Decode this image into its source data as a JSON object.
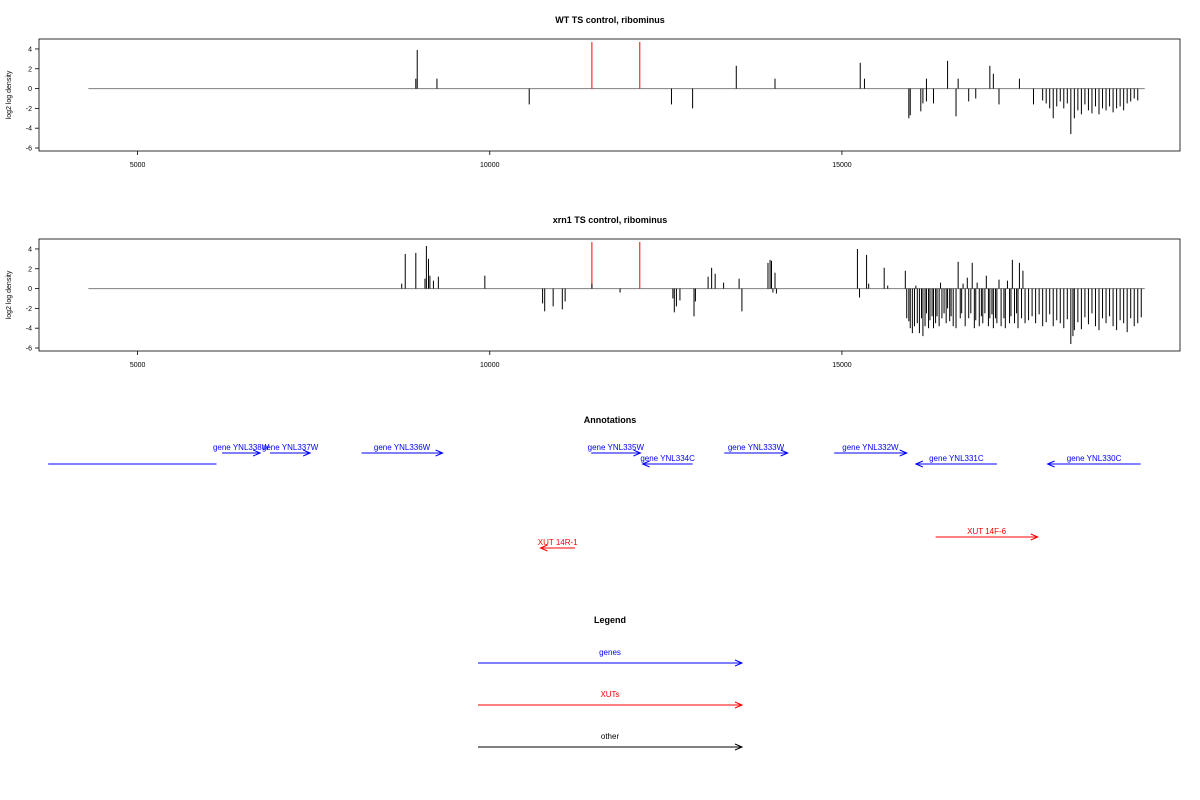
{
  "colors": {
    "gene": "#0000ff",
    "xut": "#ff0000",
    "other": "#000000",
    "marker": "#ff0000",
    "bar": "#000000",
    "baseline": "#7f7f7f"
  },
  "chart_data": [
    {
      "type": "bar",
      "title": "WT TS control, ribominus",
      "ylabel": "log2 log density",
      "xlim": [
        3600,
        19800
      ],
      "ylim": [
        -6,
        4.5
      ],
      "x_ticks": [
        5000,
        10000,
        15000
      ],
      "y_ticks": [
        -6,
        -4,
        -2,
        0,
        2,
        4
      ],
      "baseline_range": [
        4300,
        19300
      ],
      "markers_x": [
        11450,
        12130
      ],
      "bars": [
        [
          8950,
          1
        ],
        [
          8970,
          3.9
        ],
        [
          9250,
          1
        ],
        [
          10560,
          -1.6
        ],
        [
          12580,
          -1.6
        ],
        [
          12880,
          -2
        ],
        [
          13500,
          2.3
        ],
        [
          14050,
          1
        ],
        [
          15260,
          2.6
        ],
        [
          15320,
          1
        ],
        [
          15950,
          -3
        ],
        [
          15970,
          -2.7
        ],
        [
          16120,
          -2.3
        ],
        [
          16150,
          -1.5
        ],
        [
          16200,
          -1.3
        ],
        [
          16200,
          1
        ],
        [
          16300,
          -1.5
        ],
        [
          16500,
          2.8
        ],
        [
          16620,
          -2.8
        ],
        [
          16650,
          1
        ],
        [
          16800,
          -1.3
        ],
        [
          16900,
          -1
        ],
        [
          17100,
          2.3
        ],
        [
          17150,
          1.5
        ],
        [
          17230,
          -1.6
        ],
        [
          17520,
          1
        ],
        [
          17720,
          -1.6
        ],
        [
          17850,
          -1.2
        ],
        [
          17900,
          -1.5
        ],
        [
          17950,
          -2
        ],
        [
          18000,
          -3
        ],
        [
          18050,
          -1.8
        ],
        [
          18100,
          -1.3
        ],
        [
          18150,
          -2
        ],
        [
          18200,
          -1.5
        ],
        [
          18250,
          -4.6
        ],
        [
          18300,
          -3
        ],
        [
          18350,
          -2.2
        ],
        [
          18400,
          -2.6
        ],
        [
          18450,
          -1.6
        ],
        [
          18500,
          -2.2
        ],
        [
          18550,
          -2.5
        ],
        [
          18600,
          -1.8
        ],
        [
          18650,
          -2.6
        ],
        [
          18700,
          -2
        ],
        [
          18750,
          -2.2
        ],
        [
          18800,
          -1.8
        ],
        [
          18850,
          -2.4
        ],
        [
          18900,
          -2
        ],
        [
          18950,
          -1.8
        ],
        [
          19000,
          -2.2
        ],
        [
          19050,
          -1.5
        ],
        [
          19100,
          -1.3
        ],
        [
          19150,
          -1
        ],
        [
          19200,
          -1.2
        ]
      ]
    },
    {
      "type": "bar",
      "title": "xrn1 TS control, ribominus",
      "ylabel": "log2 log density",
      "xlim": [
        3600,
        19800
      ],
      "ylim": [
        -6,
        4.5
      ],
      "x_ticks": [
        5000,
        10000,
        15000
      ],
      "y_ticks": [
        -6,
        -4,
        -2,
        0,
        2,
        4
      ],
      "baseline_range": [
        4300,
        19300
      ],
      "markers_x": [
        11450,
        12130
      ],
      "bars": [
        [
          8750,
          0.5
        ],
        [
          8800,
          3.5
        ],
        [
          8950,
          3.6
        ],
        [
          9080,
          1
        ],
        [
          9100,
          4.3
        ],
        [
          9130,
          3
        ],
        [
          9150,
          1.3
        ],
        [
          9200,
          0.8
        ],
        [
          9270,
          1.2
        ],
        [
          9930,
          1.3
        ],
        [
          10750,
          -1.5
        ],
        [
          10780,
          -2.3
        ],
        [
          10900,
          -1.8
        ],
        [
          11030,
          -2.1
        ],
        [
          11070,
          -1.3
        ],
        [
          11450,
          0.5
        ],
        [
          11850,
          -0.4
        ],
        [
          12600,
          -1
        ],
        [
          12620,
          -2.4
        ],
        [
          12650,
          -1.8
        ],
        [
          12700,
          -1.2
        ],
        [
          12900,
          -2.8
        ],
        [
          12920,
          -1.3
        ],
        [
          13100,
          1.2
        ],
        [
          13150,
          2.1
        ],
        [
          13200,
          1.5
        ],
        [
          13320,
          0.6
        ],
        [
          13540,
          1
        ],
        [
          13580,
          -2.3
        ],
        [
          13950,
          2.6
        ],
        [
          13980,
          2.9
        ],
        [
          14000,
          2.8
        ],
        [
          14020,
          -0.4
        ],
        [
          14050,
          1.6
        ],
        [
          14070,
          -0.5
        ],
        [
          15220,
          4
        ],
        [
          15250,
          -0.9
        ],
        [
          15350,
          3.4
        ],
        [
          15380,
          0.5
        ],
        [
          15600,
          2.1
        ],
        [
          15650,
          0.3
        ],
        [
          15900,
          1.8
        ],
        [
          15920,
          -3
        ],
        [
          15950,
          -3.3
        ],
        [
          15970,
          -4
        ],
        [
          16000,
          -4.5
        ],
        [
          16030,
          -3.8
        ],
        [
          16050,
          0.3
        ],
        [
          16070,
          -3.5
        ],
        [
          16100,
          -4.5
        ],
        [
          16130,
          -3
        ],
        [
          16150,
          -4.8
        ],
        [
          16180,
          -3.8
        ],
        [
          16200,
          -2.5
        ],
        [
          16230,
          -4
        ],
        [
          16250,
          -3.2
        ],
        [
          16280,
          -2.8
        ],
        [
          16300,
          -4
        ],
        [
          16330,
          -3.5
        ],
        [
          16350,
          -2.8
        ],
        [
          16380,
          -3.8
        ],
        [
          16400,
          0.6
        ],
        [
          16420,
          -3
        ],
        [
          16450,
          -2.5
        ],
        [
          16480,
          -3.5
        ],
        [
          16500,
          -2
        ],
        [
          16530,
          -3.3
        ],
        [
          16550,
          -2.8
        ],
        [
          16580,
          -3.8
        ],
        [
          16620,
          -4
        ],
        [
          16650,
          2.7
        ],
        [
          16680,
          -3
        ],
        [
          16700,
          -2.5
        ],
        [
          16720,
          0.5
        ],
        [
          16750,
          -3.8
        ],
        [
          16780,
          1.1
        ],
        [
          16800,
          -3
        ],
        [
          16830,
          -2.5
        ],
        [
          16850,
          2.6
        ],
        [
          16880,
          -4
        ],
        [
          16900,
          -3.2
        ],
        [
          16920,
          0.6
        ],
        [
          16950,
          -3.8
        ],
        [
          16980,
          -2.8
        ],
        [
          17000,
          -3.5
        ],
        [
          17030,
          -2.5
        ],
        [
          17050,
          1.3
        ],
        [
          17080,
          -3.8
        ],
        [
          17100,
          -3
        ],
        [
          17130,
          -2.6
        ],
        [
          17150,
          -4
        ],
        [
          17180,
          -3
        ],
        [
          17200,
          -3.5
        ],
        [
          17230,
          0.9
        ],
        [
          17260,
          -3.8
        ],
        [
          17300,
          -3
        ],
        [
          17320,
          -4
        ],
        [
          17350,
          0.8
        ],
        [
          17380,
          -3.5
        ],
        [
          17400,
          -2.8
        ],
        [
          17420,
          2.9
        ],
        [
          17450,
          -3.5
        ],
        [
          17480,
          -2.5
        ],
        [
          17500,
          -4
        ],
        [
          17520,
          2.6
        ],
        [
          17550,
          -3
        ],
        [
          17570,
          1.8
        ],
        [
          17600,
          -3.5
        ],
        [
          17650,
          -3.2
        ],
        [
          17700,
          -2.8
        ],
        [
          17750,
          -3.5
        ],
        [
          17800,
          -2.6
        ],
        [
          17850,
          -3.8
        ],
        [
          17900,
          -3.4
        ],
        [
          17950,
          -2.6
        ],
        [
          18000,
          -3.8
        ],
        [
          18050,
          -3.2
        ],
        [
          18100,
          -3.5
        ],
        [
          18150,
          -4
        ],
        [
          18200,
          -3.1
        ],
        [
          18250,
          -5.6
        ],
        [
          18280,
          -4.8
        ],
        [
          18300,
          -4.2
        ],
        [
          18350,
          -3.4
        ],
        [
          18400,
          -4.1
        ],
        [
          18450,
          -2.9
        ],
        [
          18500,
          -3.6
        ],
        [
          18550,
          -2.5
        ],
        [
          18600,
          -3.8
        ],
        [
          18650,
          -4.2
        ],
        [
          18700,
          -3
        ],
        [
          18750,
          -3.5
        ],
        [
          18800,
          -2.8
        ],
        [
          18850,
          -3.8
        ],
        [
          18900,
          -4.2
        ],
        [
          18950,
          -3.2
        ],
        [
          19000,
          -3.5
        ],
        [
          19050,
          -4.4
        ],
        [
          19100,
          -3
        ],
        [
          19150,
          -3.8
        ],
        [
          19200,
          -3.5
        ],
        [
          19250,
          -2.9
        ]
      ]
    }
  ],
  "annotations": {
    "title": "Annotations",
    "items": [
      {
        "label": "",
        "kind": "gene",
        "start": 3730,
        "end": 6120,
        "strand": "plain"
      },
      {
        "label": "gene YNL338W",
        "kind": "gene",
        "start": 6200,
        "end": 6740,
        "strand": "+"
      },
      {
        "label": "gene YNL337W",
        "kind": "gene",
        "start": 6880,
        "end": 7450,
        "strand": "+"
      },
      {
        "label": "gene YNL336W",
        "kind": "gene",
        "start": 8180,
        "end": 9330,
        "strand": "+"
      },
      {
        "label": "gene YNL335W",
        "kind": "gene",
        "start": 11440,
        "end": 12140,
        "strand": "+"
      },
      {
        "label": "gene YNL334C",
        "kind": "gene",
        "start": 12170,
        "end": 12880,
        "strand": "-"
      },
      {
        "label": "gene YNL333W",
        "kind": "gene",
        "start": 13330,
        "end": 14230,
        "strand": "+"
      },
      {
        "label": "gene YNL332W",
        "kind": "gene",
        "start": 14890,
        "end": 15920,
        "strand": "+"
      },
      {
        "label": "gene YNL331C",
        "kind": "gene",
        "start": 16050,
        "end": 17200,
        "strand": "-"
      },
      {
        "label": "gene YNL330C",
        "kind": "gene",
        "start": 17920,
        "end": 19240,
        "strand": "-"
      },
      {
        "label": "XUT 14R-1",
        "kind": "xut",
        "start": 10720,
        "end": 11210,
        "strand": "-"
      },
      {
        "label": "XUT 14F-6",
        "kind": "xut",
        "start": 16330,
        "end": 17780,
        "strand": "+"
      }
    ]
  },
  "legend": {
    "title": "Legend",
    "items": [
      {
        "label": "genes",
        "kind": "gene"
      },
      {
        "label": "XUTs",
        "kind": "xut"
      },
      {
        "label": "other",
        "kind": "other"
      }
    ]
  }
}
